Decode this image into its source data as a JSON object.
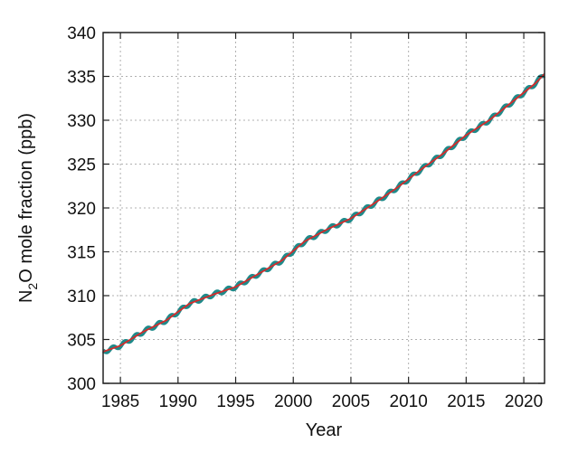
{
  "chart_data": {
    "type": "line",
    "title": "",
    "xlabel": "Year",
    "ylabel_parts": [
      "N",
      "2",
      "O mole fraction (ppb)"
    ],
    "xlim": [
      1983.5,
      2021.8
    ],
    "ylim": [
      300,
      340
    ],
    "x_ticks": [
      1985,
      1990,
      1995,
      2000,
      2005,
      2010,
      2015,
      2020
    ],
    "y_ticks": [
      300,
      305,
      310,
      315,
      320,
      325,
      330,
      335,
      340
    ],
    "grid": true,
    "legend": "none",
    "series": [
      {
        "style": "monthly",
        "color": "#1f8a8a",
        "seasonal_amplitude": 0.2,
        "x": [
          1983.5,
          1985,
          1987,
          1989,
          1991,
          1993,
          1995,
          1997,
          1999,
          2001,
          2003,
          2005,
          2007,
          2009,
          2011,
          2013,
          2015,
          2017,
          2019,
          2021,
          2021.8
        ],
        "values": [
          303.6,
          304.3,
          305.9,
          307.2,
          309.1,
          310.1,
          311.0,
          312.5,
          314.0,
          316.2,
          317.6,
          318.8,
          320.5,
          322.3,
          324.3,
          326.2,
          328.3,
          330.0,
          332.1,
          334.2,
          335.3
        ]
      },
      {
        "style": "trend",
        "color": "#d62b2b",
        "x": [
          1983.5,
          1985,
          1987,
          1989,
          1991,
          1993,
          1995,
          1997,
          1999,
          2001,
          2003,
          2005,
          2007,
          2009,
          2011,
          2013,
          2015,
          2017,
          2019,
          2021,
          2021.8
        ],
        "values": [
          303.6,
          304.3,
          305.9,
          307.2,
          309.1,
          310.1,
          311.0,
          312.5,
          314.0,
          316.2,
          317.6,
          318.8,
          320.5,
          322.3,
          324.3,
          326.2,
          328.3,
          330.0,
          332.1,
          334.2,
          335.3
        ]
      }
    ]
  }
}
